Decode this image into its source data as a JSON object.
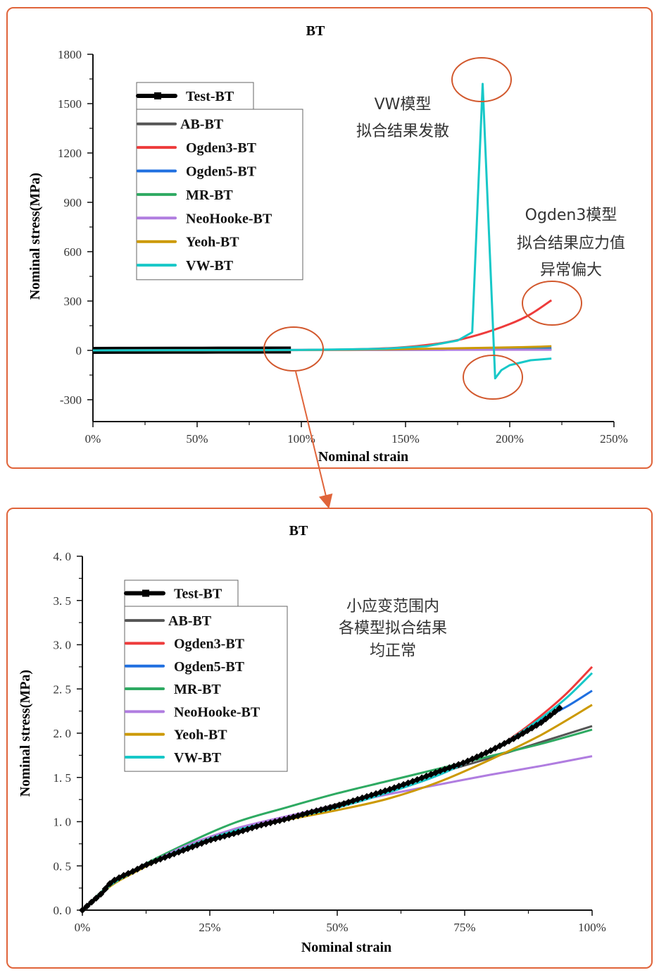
{
  "panels": [
    {
      "id": "top",
      "annotation_lines": [
        [
          "VW模型",
          "拟合结果发散"
        ],
        [
          "Ogden3模型",
          "拟合结果应力值",
          "异常偏大"
        ]
      ]
    },
    {
      "id": "bottom",
      "annotation_lines": [
        [
          "小应变范围内",
          "各模型拟合结果",
          "均正常"
        ]
      ]
    }
  ],
  "colors": {
    "panel_border": "#e0643a",
    "Test-BT": "#000000",
    "AB-BT": "#555555",
    "Ogden3-BT": "#ee3b3b",
    "Ogden5-BT": "#1f6fe0",
    "MR-BT": "#2eaa62",
    "NeoHooke-BT": "#b07de0",
    "Yeoh-BT": "#cc9900",
    "VW-BT": "#17c8c8"
  },
  "chart_data": [
    {
      "type": "line",
      "title": "BT",
      "xlabel": "Nominal strain",
      "ylabel": "Nominal stress(MPa)",
      "xlim": [
        0,
        250
      ],
      "ylim": [
        -300,
        1800
      ],
      "x_unit": "%",
      "x_ticks": [
        "0%",
        "50%",
        "100%",
        "150%",
        "200%",
        "250%"
      ],
      "x_tick_values": [
        0,
        50,
        100,
        150,
        200,
        250
      ],
      "y_ticks": [
        "-300",
        "0",
        "300",
        "600",
        "900",
        "1200",
        "1500",
        "1800"
      ],
      "y_tick_values": [
        -300,
        0,
        300,
        600,
        900,
        1200,
        1500,
        1800
      ],
      "legend": [
        "Test-BT",
        "AB-BT",
        "Ogden3-BT",
        "Ogden5-BT",
        "MR-BT",
        "NeoHooke-BT",
        "Yeoh-BT",
        "VW-BT"
      ],
      "legend_position": "top-left",
      "series": [
        {
          "name": "Test-BT",
          "x": [
            0,
            20,
            40,
            60,
            80,
            95
          ],
          "y": [
            0,
            0.8,
            1.15,
            1.45,
            1.8,
            2.3
          ]
        },
        {
          "name": "AB-BT",
          "x": [
            0,
            50,
            100,
            150,
            200,
            220
          ],
          "y": [
            0,
            1.2,
            2.1,
            3.5,
            5,
            6
          ]
        },
        {
          "name": "Ogden3-BT",
          "x": [
            0,
            100,
            130,
            150,
            170,
            185,
            200,
            210,
            220
          ],
          "y": [
            0,
            2.7,
            8,
            20,
            50,
            95,
            160,
            220,
            305
          ]
        },
        {
          "name": "Ogden5-BT",
          "x": [
            0,
            100,
            150,
            200,
            220
          ],
          "y": [
            0,
            2.5,
            6,
            12,
            15
          ]
        },
        {
          "name": "MR-BT",
          "x": [
            0,
            100,
            150,
            200,
            220
          ],
          "y": [
            0,
            2.0,
            3.5,
            5,
            6
          ]
        },
        {
          "name": "NeoHooke-BT",
          "x": [
            0,
            100,
            150,
            200,
            220
          ],
          "y": [
            0,
            1.7,
            2.6,
            3.5,
            4
          ]
        },
        {
          "name": "Yeoh-BT",
          "x": [
            0,
            100,
            150,
            200,
            220
          ],
          "y": [
            0,
            2.3,
            8,
            18,
            25
          ]
        },
        {
          "name": "VW-BT",
          "x": [
            0,
            100,
            140,
            160,
            175,
            182,
            187,
            193,
            196,
            200,
            210,
            220
          ],
          "y": [
            0,
            2.6,
            10,
            25,
            60,
            110,
            1620,
            -170,
            -120,
            -90,
            -60,
            -50
          ]
        }
      ]
    },
    {
      "type": "line",
      "title": "BT",
      "xlabel": "Nominal strain",
      "ylabel": "Nominal stress(MPa)",
      "xlim": [
        0,
        100
      ],
      "ylim": [
        0,
        4.0
      ],
      "x_unit": "%",
      "x_ticks": [
        "0%",
        "25%",
        "50%",
        "75%",
        "100%"
      ],
      "x_tick_values": [
        0,
        25,
        50,
        75,
        100
      ],
      "y_ticks": [
        "0. 0",
        "0. 5",
        "1. 0",
        "1. 5",
        "2. 0",
        "2. 5",
        "3. 0",
        "3. 5",
        "4. 0"
      ],
      "y_tick_values": [
        0,
        0.5,
        1.0,
        1.5,
        2.0,
        2.5,
        3.0,
        3.5,
        4.0
      ],
      "legend": [
        "Test-BT",
        "AB-BT",
        "Ogden3-BT",
        "Ogden5-BT",
        "MR-BT",
        "NeoHooke-BT",
        "Yeoh-BT",
        "VW-BT"
      ],
      "legend_position": "top-left",
      "series": [
        {
          "name": "AB-BT",
          "x": [
            0,
            5,
            10,
            20,
            30,
            40,
            50,
            60,
            70,
            80,
            90,
            100
          ],
          "y": [
            0,
            0.26,
            0.43,
            0.7,
            0.92,
            1.05,
            1.2,
            1.36,
            1.55,
            1.72,
            1.9,
            2.08
          ]
        },
        {
          "name": "Ogden3-BT",
          "x": [
            0,
            5,
            10,
            20,
            30,
            40,
            50,
            60,
            70,
            80,
            85,
            90,
            95,
            100
          ],
          "y": [
            0,
            0.26,
            0.43,
            0.7,
            0.9,
            1.03,
            1.16,
            1.33,
            1.53,
            1.8,
            1.98,
            2.2,
            2.45,
            2.75
          ]
        },
        {
          "name": "Ogden5-BT",
          "x": [
            0,
            5,
            10,
            20,
            30,
            40,
            50,
            60,
            70,
            80,
            85,
            90,
            95,
            100
          ],
          "y": [
            0,
            0.26,
            0.43,
            0.7,
            0.9,
            1.03,
            1.16,
            1.33,
            1.53,
            1.8,
            1.97,
            2.15,
            2.3,
            2.48
          ]
        },
        {
          "name": "MR-BT",
          "x": [
            0,
            5,
            10,
            20,
            30,
            40,
            50,
            60,
            70,
            80,
            90,
            100
          ],
          "y": [
            0,
            0.27,
            0.45,
            0.74,
            0.99,
            1.16,
            1.32,
            1.46,
            1.6,
            1.74,
            1.88,
            2.04
          ]
        },
        {
          "name": "NeoHooke-BT",
          "x": [
            0,
            5,
            10,
            20,
            30,
            40,
            50,
            60,
            70,
            80,
            90,
            100
          ],
          "y": [
            0,
            0.26,
            0.43,
            0.72,
            0.92,
            1.06,
            1.19,
            1.31,
            1.42,
            1.53,
            1.63,
            1.74
          ]
        },
        {
          "name": "Yeoh-BT",
          "x": [
            0,
            5,
            10,
            20,
            30,
            40,
            50,
            60,
            70,
            80,
            90,
            100
          ],
          "y": [
            0,
            0.25,
            0.42,
            0.7,
            0.9,
            1.02,
            1.13,
            1.26,
            1.45,
            1.7,
            1.98,
            2.32
          ]
        },
        {
          "name": "VW-BT",
          "x": [
            0,
            5,
            10,
            20,
            30,
            40,
            50,
            60,
            70,
            80,
            85,
            90,
            95,
            100
          ],
          "y": [
            0,
            0.26,
            0.43,
            0.7,
            0.9,
            1.03,
            1.16,
            1.33,
            1.53,
            1.8,
            1.97,
            2.17,
            2.4,
            2.68
          ]
        },
        {
          "name": "Test-BT",
          "x": [
            0,
            1,
            2,
            3,
            4,
            5,
            6,
            7,
            8,
            10,
            12,
            15,
            20,
            25,
            30,
            35,
            40,
            45,
            50,
            55,
            60,
            65,
            70,
            75,
            80,
            85,
            90,
            94
          ],
          "y": [
            0,
            0.05,
            0.1,
            0.15,
            0.2,
            0.28,
            0.33,
            0.36,
            0.39,
            0.44,
            0.5,
            0.57,
            0.68,
            0.79,
            0.87,
            0.96,
            1.03,
            1.11,
            1.18,
            1.27,
            1.36,
            1.46,
            1.57,
            1.67,
            1.8,
            1.95,
            2.12,
            2.3
          ]
        }
      ]
    }
  ]
}
